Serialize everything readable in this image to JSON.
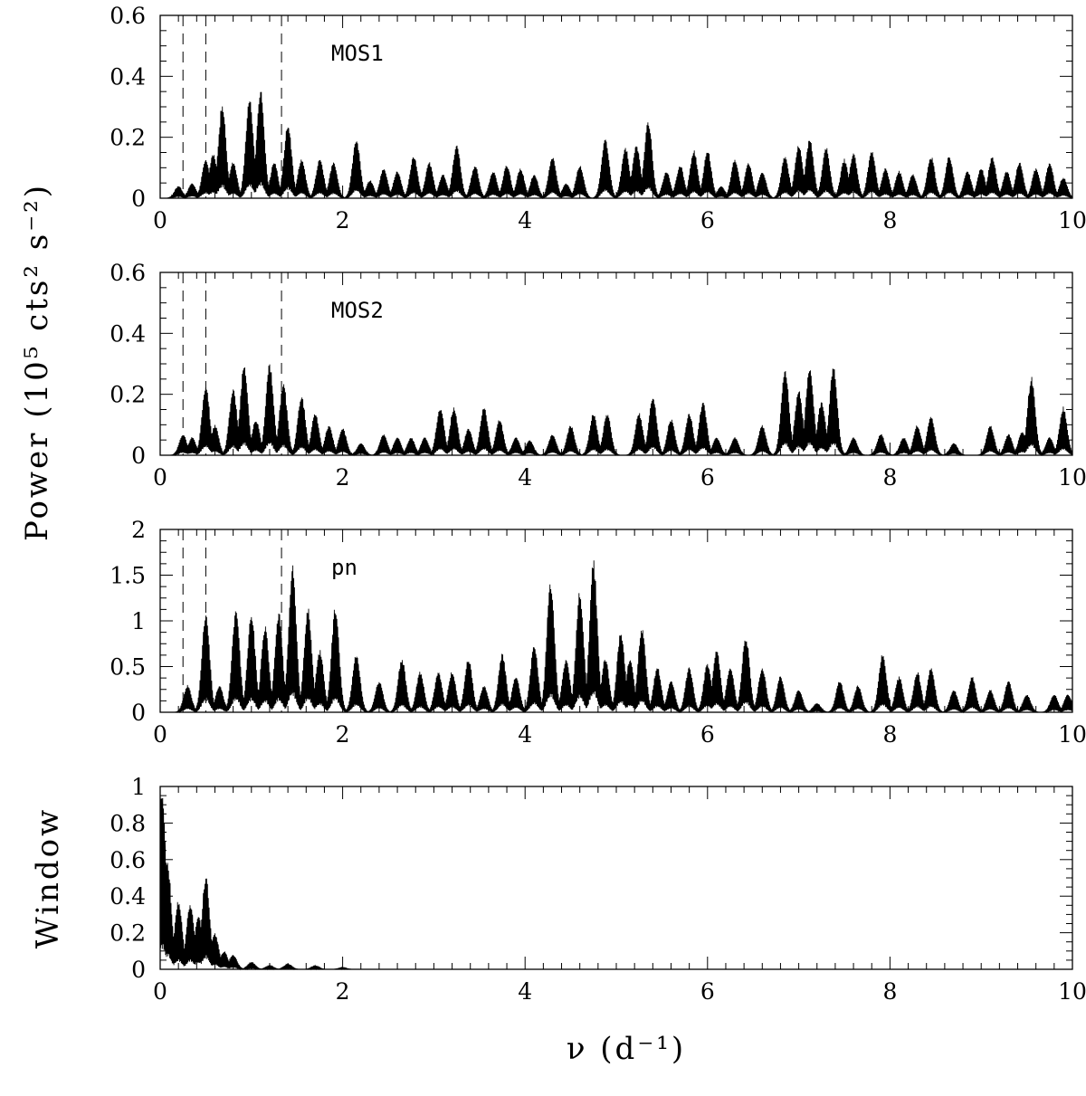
{
  "figure": {
    "ylabel_power": "Power (10⁵ cts² s⁻²)",
    "xlabel": "ν (d⁻¹)"
  },
  "chart_data": [
    {
      "type": "line",
      "panel_label": "MOS1",
      "xlim": [
        0,
        10
      ],
      "ylim": [
        0,
        0.6
      ],
      "xticks": [
        0,
        2,
        4,
        6,
        8,
        10
      ],
      "yticks": [
        0,
        0.2,
        0.4,
        0.6
      ],
      "dashed_vlines": [
        0.25,
        0.5,
        1.33
      ],
      "peaks": [
        [
          0.2,
          0.04
        ],
        [
          0.35,
          0.05
        ],
        [
          0.5,
          0.13
        ],
        [
          0.58,
          0.15
        ],
        [
          0.68,
          0.31
        ],
        [
          0.8,
          0.12
        ],
        [
          0.98,
          0.33
        ],
        [
          1.1,
          0.36
        ],
        [
          1.25,
          0.12
        ],
        [
          1.4,
          0.25
        ],
        [
          1.55,
          0.13
        ],
        [
          1.75,
          0.13
        ],
        [
          1.9,
          0.12
        ],
        [
          2.15,
          0.2
        ],
        [
          2.3,
          0.06
        ],
        [
          2.45,
          0.1
        ],
        [
          2.6,
          0.09
        ],
        [
          2.78,
          0.14
        ],
        [
          2.95,
          0.12
        ],
        [
          3.1,
          0.08
        ],
        [
          3.25,
          0.18
        ],
        [
          3.45,
          0.11
        ],
        [
          3.65,
          0.09
        ],
        [
          3.8,
          0.11
        ],
        [
          3.95,
          0.1
        ],
        [
          4.1,
          0.08
        ],
        [
          4.3,
          0.14
        ],
        [
          4.45,
          0.05
        ],
        [
          4.6,
          0.11
        ],
        [
          4.88,
          0.2
        ],
        [
          5.1,
          0.17
        ],
        [
          5.22,
          0.18
        ],
        [
          5.35,
          0.26
        ],
        [
          5.55,
          0.09
        ],
        [
          5.7,
          0.11
        ],
        [
          5.85,
          0.16
        ],
        [
          6.0,
          0.16
        ],
        [
          6.15,
          0.04
        ],
        [
          6.3,
          0.13
        ],
        [
          6.45,
          0.12
        ],
        [
          6.6,
          0.09
        ],
        [
          6.85,
          0.14
        ],
        [
          7.0,
          0.18
        ],
        [
          7.12,
          0.2
        ],
        [
          7.3,
          0.17
        ],
        [
          7.5,
          0.13
        ],
        [
          7.6,
          0.15
        ],
        [
          7.8,
          0.16
        ],
        [
          7.95,
          0.1
        ],
        [
          8.1,
          0.09
        ],
        [
          8.25,
          0.08
        ],
        [
          8.45,
          0.14
        ],
        [
          8.65,
          0.14
        ],
        [
          8.85,
          0.09
        ],
        [
          9.0,
          0.1
        ],
        [
          9.12,
          0.14
        ],
        [
          9.28,
          0.09
        ],
        [
          9.42,
          0.12
        ],
        [
          9.6,
          0.1
        ],
        [
          9.75,
          0.12
        ],
        [
          9.9,
          0.07
        ]
      ]
    },
    {
      "type": "line",
      "panel_label": "MOS2",
      "xlim": [
        0,
        10
      ],
      "ylim": [
        0,
        0.6
      ],
      "xticks": [
        0,
        2,
        4,
        6,
        8,
        10
      ],
      "yticks": [
        0,
        0.2,
        0.4,
        0.6
      ],
      "dashed_vlines": [
        0.25,
        0.5,
        1.33
      ],
      "peaks": [
        [
          0.25,
          0.07
        ],
        [
          0.35,
          0.06
        ],
        [
          0.5,
          0.23
        ],
        [
          0.6,
          0.1
        ],
        [
          0.8,
          0.22
        ],
        [
          0.92,
          0.3
        ],
        [
          1.05,
          0.12
        ],
        [
          1.2,
          0.31
        ],
        [
          1.35,
          0.24
        ],
        [
          1.55,
          0.2
        ],
        [
          1.7,
          0.14
        ],
        [
          1.85,
          0.1
        ],
        [
          2.0,
          0.09
        ],
        [
          2.2,
          0.04
        ],
        [
          2.45,
          0.07
        ],
        [
          2.6,
          0.06
        ],
        [
          2.75,
          0.06
        ],
        [
          2.9,
          0.06
        ],
        [
          3.07,
          0.16
        ],
        [
          3.22,
          0.16
        ],
        [
          3.38,
          0.09
        ],
        [
          3.55,
          0.16
        ],
        [
          3.72,
          0.12
        ],
        [
          3.9,
          0.06
        ],
        [
          4.05,
          0.05
        ],
        [
          4.3,
          0.07
        ],
        [
          4.5,
          0.1
        ],
        [
          4.75,
          0.14
        ],
        [
          4.9,
          0.14
        ],
        [
          5.25,
          0.14
        ],
        [
          5.4,
          0.2
        ],
        [
          5.6,
          0.12
        ],
        [
          5.8,
          0.14
        ],
        [
          5.95,
          0.18
        ],
        [
          6.1,
          0.06
        ],
        [
          6.3,
          0.06
        ],
        [
          6.6,
          0.1
        ],
        [
          6.85,
          0.29
        ],
        [
          7.0,
          0.22
        ],
        [
          7.12,
          0.3
        ],
        [
          7.25,
          0.18
        ],
        [
          7.38,
          0.3
        ],
        [
          7.6,
          0.06
        ],
        [
          7.9,
          0.07
        ],
        [
          8.15,
          0.06
        ],
        [
          8.3,
          0.1
        ],
        [
          8.45,
          0.13
        ],
        [
          8.7,
          0.04
        ],
        [
          9.1,
          0.1
        ],
        [
          9.3,
          0.07
        ],
        [
          9.45,
          0.08
        ],
        [
          9.55,
          0.26
        ],
        [
          9.75,
          0.06
        ],
        [
          9.9,
          0.16
        ]
      ]
    },
    {
      "type": "line",
      "panel_label": "pn",
      "xlim": [
        0,
        10
      ],
      "ylim": [
        0,
        2
      ],
      "xticks": [
        0,
        2,
        4,
        6,
        8,
        10
      ],
      "yticks": [
        0,
        0.5,
        1,
        1.5,
        2
      ],
      "dashed_vlines": [
        0.25,
        0.5,
        1.33
      ],
      "peaks": [
        [
          0.3,
          0.3
        ],
        [
          0.5,
          1.1
        ],
        [
          0.65,
          0.3
        ],
        [
          0.83,
          1.15
        ],
        [
          1.0,
          1.1
        ],
        [
          1.15,
          0.95
        ],
        [
          1.3,
          1.1
        ],
        [
          1.45,
          1.62
        ],
        [
          1.62,
          1.15
        ],
        [
          1.75,
          0.7
        ],
        [
          1.92,
          1.17
        ],
        [
          2.15,
          0.65
        ],
        [
          2.4,
          0.35
        ],
        [
          2.65,
          0.6
        ],
        [
          2.85,
          0.45
        ],
        [
          3.05,
          0.45
        ],
        [
          3.2,
          0.45
        ],
        [
          3.38,
          0.6
        ],
        [
          3.55,
          0.3
        ],
        [
          3.75,
          0.65
        ],
        [
          3.9,
          0.4
        ],
        [
          4.1,
          0.75
        ],
        [
          4.28,
          1.47
        ],
        [
          4.45,
          0.6
        ],
        [
          4.6,
          1.35
        ],
        [
          4.75,
          1.68
        ],
        [
          4.88,
          0.6
        ],
        [
          5.05,
          0.9
        ],
        [
          5.15,
          0.6
        ],
        [
          5.28,
          0.95
        ],
        [
          5.45,
          0.5
        ],
        [
          5.6,
          0.35
        ],
        [
          5.8,
          0.5
        ],
        [
          6.0,
          0.55
        ],
        [
          6.1,
          0.7
        ],
        [
          6.25,
          0.5
        ],
        [
          6.42,
          0.85
        ],
        [
          6.6,
          0.5
        ],
        [
          6.8,
          0.4
        ],
        [
          7.0,
          0.25
        ],
        [
          7.2,
          0.1
        ],
        [
          7.45,
          0.35
        ],
        [
          7.65,
          0.3
        ],
        [
          7.92,
          0.65
        ],
        [
          8.1,
          0.4
        ],
        [
          8.3,
          0.45
        ],
        [
          8.45,
          0.5
        ],
        [
          8.7,
          0.25
        ],
        [
          8.9,
          0.4
        ],
        [
          9.1,
          0.25
        ],
        [
          9.3,
          0.35
        ],
        [
          9.5,
          0.2
        ],
        [
          9.8,
          0.2
        ],
        [
          9.95,
          0.2
        ]
      ]
    },
    {
      "type": "line",
      "ylabel": "Window",
      "xlim": [
        0,
        10
      ],
      "ylim": [
        0,
        1
      ],
      "xticks": [
        0,
        2,
        4,
        6,
        8,
        10
      ],
      "yticks": [
        0,
        0.2,
        0.4,
        0.6,
        0.8,
        1
      ],
      "peaks": [
        [
          0.02,
          1.0
        ],
        [
          0.08,
          0.6
        ],
        [
          0.2,
          0.38
        ],
        [
          0.33,
          0.37
        ],
        [
          0.42,
          0.3
        ],
        [
          0.5,
          0.52
        ],
        [
          0.6,
          0.2
        ],
        [
          0.7,
          0.1
        ],
        [
          0.8,
          0.08
        ],
        [
          1.0,
          0.04
        ],
        [
          1.2,
          0.02
        ],
        [
          1.4,
          0.03
        ],
        [
          1.7,
          0.02
        ],
        [
          2.0,
          0.01
        ]
      ]
    }
  ]
}
